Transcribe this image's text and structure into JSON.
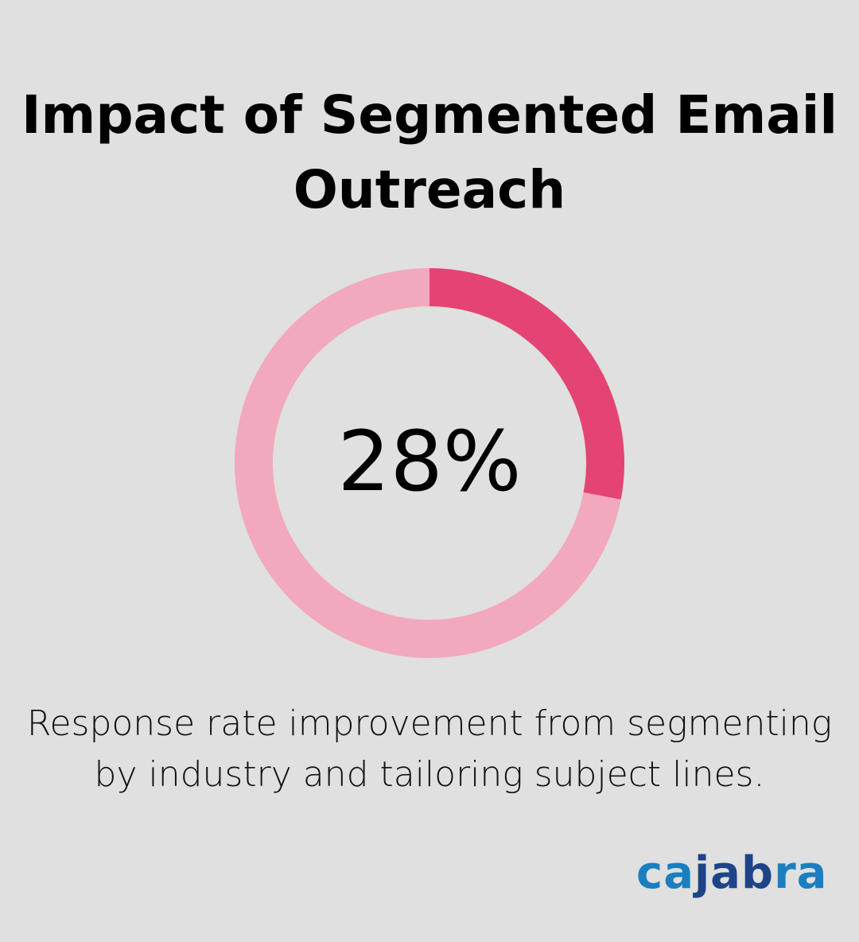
{
  "title": "Impact of Segmented Email Outreach",
  "caption": "Response rate improvement from segmenting by industry and tailoring subject lines.",
  "logo": {
    "text": "cajabra",
    "part1": "ca",
    "part2": "jab",
    "part3": "ra",
    "colors": {
      "light": "#1a7fc0",
      "dark": "#1e4488"
    }
  },
  "chart_data": {
    "type": "pie",
    "variant": "donut",
    "center_label": "28%",
    "values": [
      28,
      72
    ],
    "colors": [
      "#e44474",
      "#f2a8bd"
    ]
  }
}
